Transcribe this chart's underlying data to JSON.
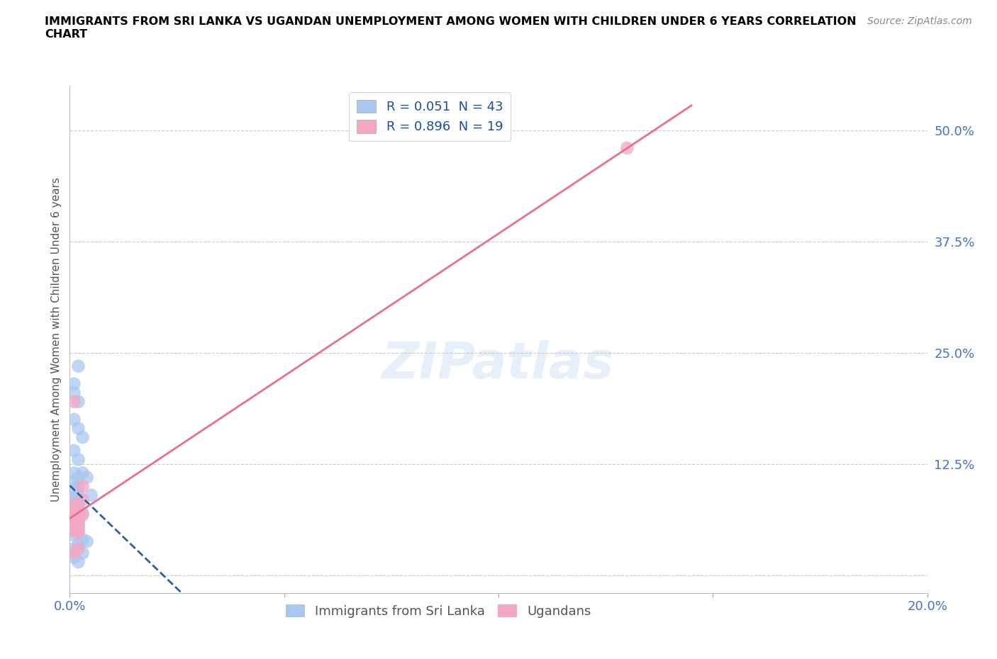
{
  "title": "IMMIGRANTS FROM SRI LANKA VS UGANDAN UNEMPLOYMENT AMONG WOMEN WITH CHILDREN UNDER 6 YEARS CORRELATION\nCHART",
  "source": "Source: ZipAtlas.com",
  "ylabel": "Unemployment Among Women with Children Under 6 years",
  "xlim": [
    0.0,
    0.2
  ],
  "ylim": [
    -0.02,
    0.55
  ],
  "yticks": [
    0.0,
    0.125,
    0.25,
    0.375,
    0.5
  ],
  "ytick_labels": [
    "",
    "12.5%",
    "25.0%",
    "37.5%",
    "50.0%"
  ],
  "xticks": [
    0.0,
    0.05,
    0.1,
    0.15,
    0.2
  ],
  "xtick_labels": [
    "0.0%",
    "",
    "",
    "",
    "20.0%"
  ],
  "legend_entries": [
    {
      "label": "R = 0.051  N = 43",
      "color": "#A8C8F0"
    },
    {
      "label": "R = 0.896  N = 19",
      "color": "#F4A7C3"
    }
  ],
  "sri_lanka_x": [
    0.001,
    0.002,
    0.001,
    0.002,
    0.001,
    0.002,
    0.003,
    0.001,
    0.002,
    0.001,
    0.002,
    0.001,
    0.002,
    0.001,
    0.002,
    0.001,
    0.002,
    0.003,
    0.001,
    0.002,
    0.001,
    0.002,
    0.001,
    0.002,
    0.001,
    0.002,
    0.001,
    0.002,
    0.001,
    0.002,
    0.003,
    0.001,
    0.002,
    0.001,
    0.003,
    0.004,
    0.002,
    0.001,
    0.003,
    0.004,
    0.001,
    0.002,
    0.005
  ],
  "sri_lanka_y": [
    0.215,
    0.235,
    0.205,
    0.195,
    0.175,
    0.165,
    0.155,
    0.14,
    0.13,
    0.115,
    0.11,
    0.105,
    0.1,
    0.095,
    0.09,
    0.088,
    0.085,
    0.115,
    0.082,
    0.08,
    0.078,
    0.075,
    0.072,
    0.07,
    0.068,
    0.065,
    0.062,
    0.06,
    0.058,
    0.055,
    0.07,
    0.052,
    0.05,
    0.045,
    0.04,
    0.11,
    0.035,
    0.03,
    0.025,
    0.038,
    0.02,
    0.015,
    0.09
  ],
  "ugandan_x": [
    0.001,
    0.001,
    0.002,
    0.001,
    0.002,
    0.003,
    0.001,
    0.002,
    0.001,
    0.002,
    0.001,
    0.002,
    0.001,
    0.002,
    0.003,
    0.001,
    0.002,
    0.003,
    0.13
  ],
  "ugandan_y": [
    0.195,
    0.08,
    0.075,
    0.072,
    0.07,
    0.068,
    0.065,
    0.062,
    0.06,
    0.058,
    0.055,
    0.052,
    0.05,
    0.048,
    0.085,
    0.025,
    0.03,
    0.1,
    0.48
  ],
  "sri_lanka_color": "#A8C8F0",
  "ugandan_color": "#F4A7C3",
  "sri_lanka_line_color": "#2E5FA3",
  "ugandan_line_color": "#E8708A",
  "background_color": "#FFFFFF",
  "grid_color": "#CCCCCC",
  "title_color": "#000000",
  "tick_color_y": "#4472C4",
  "tick_color_x": "#4472C4"
}
